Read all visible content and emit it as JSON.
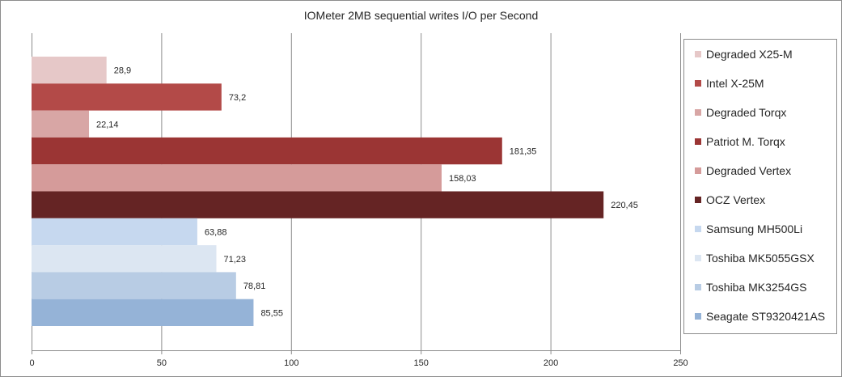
{
  "chart_data": {
    "type": "bar",
    "orientation": "horizontal",
    "title": "IOMeter 2MB sequential writes I/O per Second",
    "xlim": [
      0,
      250
    ],
    "xticks": [
      "0",
      "50",
      "100",
      "150",
      "200",
      "250"
    ],
    "grid": true,
    "legend_position": "right",
    "series": [
      {
        "name": "Degraded X25-M",
        "value": 28.9,
        "label": "28,9",
        "color": "#e6c8c8"
      },
      {
        "name": "Intel X-25M",
        "value": 73.2,
        "label": "73,2",
        "color": "#b34a48"
      },
      {
        "name": "Degraded Torqx",
        "value": 22.14,
        "label": "22,14",
        "color": "#d8a6a5"
      },
      {
        "name": "Patriot M. Torqx",
        "value": 181.35,
        "label": "181,35",
        "color": "#9b3534"
      },
      {
        "name": "Degraded Vertex",
        "value": 158.03,
        "label": "158,03",
        "color": "#d59b9a"
      },
      {
        "name": "OCZ Vertex",
        "value": 220.45,
        "label": "220,45",
        "color": "#652424"
      },
      {
        "name": "Samsung MH500Li",
        "value": 63.88,
        "label": "63,88",
        "color": "#c6d8ef"
      },
      {
        "name": "Toshiba MK5055GSX",
        "value": 71.23,
        "label": "71,23",
        "color": "#dce6f2"
      },
      {
        "name": "Toshiba MK3254GS",
        "value": 78.81,
        "label": "78,81",
        "color": "#b8cce4"
      },
      {
        "name": "Seagate ST9320421AS",
        "value": 85.55,
        "label": "85,55",
        "color": "#95b3d7"
      }
    ]
  }
}
